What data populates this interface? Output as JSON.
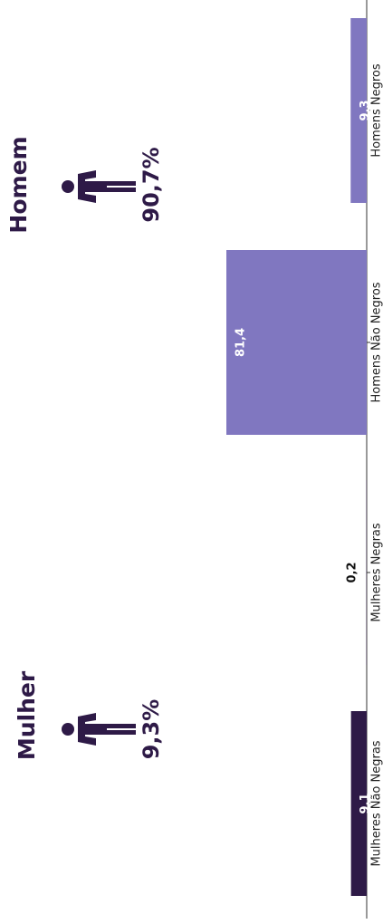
{
  "chart_data": {
    "type": "bar",
    "orientation": "vertical-text-rotated",
    "categories": [
      "Mulheres Não Negras",
      "Mulheres Negras",
      "Homens Não Negros",
      "Homens Negros"
    ],
    "values": [
      9.1,
      0.2,
      81.4,
      9.3
    ],
    "value_labels": [
      "9,1",
      "0,2",
      "81,4",
      "9,3"
    ],
    "colors": [
      "#2e1a47",
      "#2e1a47",
      "#8077c0",
      "#8077c0"
    ],
    "value_label_colors": [
      "#ffffff",
      "#111111",
      "#ffffff",
      "#ffffff"
    ],
    "ylim": [
      0,
      81.4
    ],
    "grid": false,
    "groups": [
      {
        "name": "Mulher",
        "percent": "9,3%"
      },
      {
        "name": "Homem",
        "percent": "90,7%"
      }
    ]
  },
  "colors": {
    "dark": "#2e1a47",
    "light": "#8077c0",
    "axis": "#333333"
  },
  "icons": [
    "person-icon"
  ]
}
